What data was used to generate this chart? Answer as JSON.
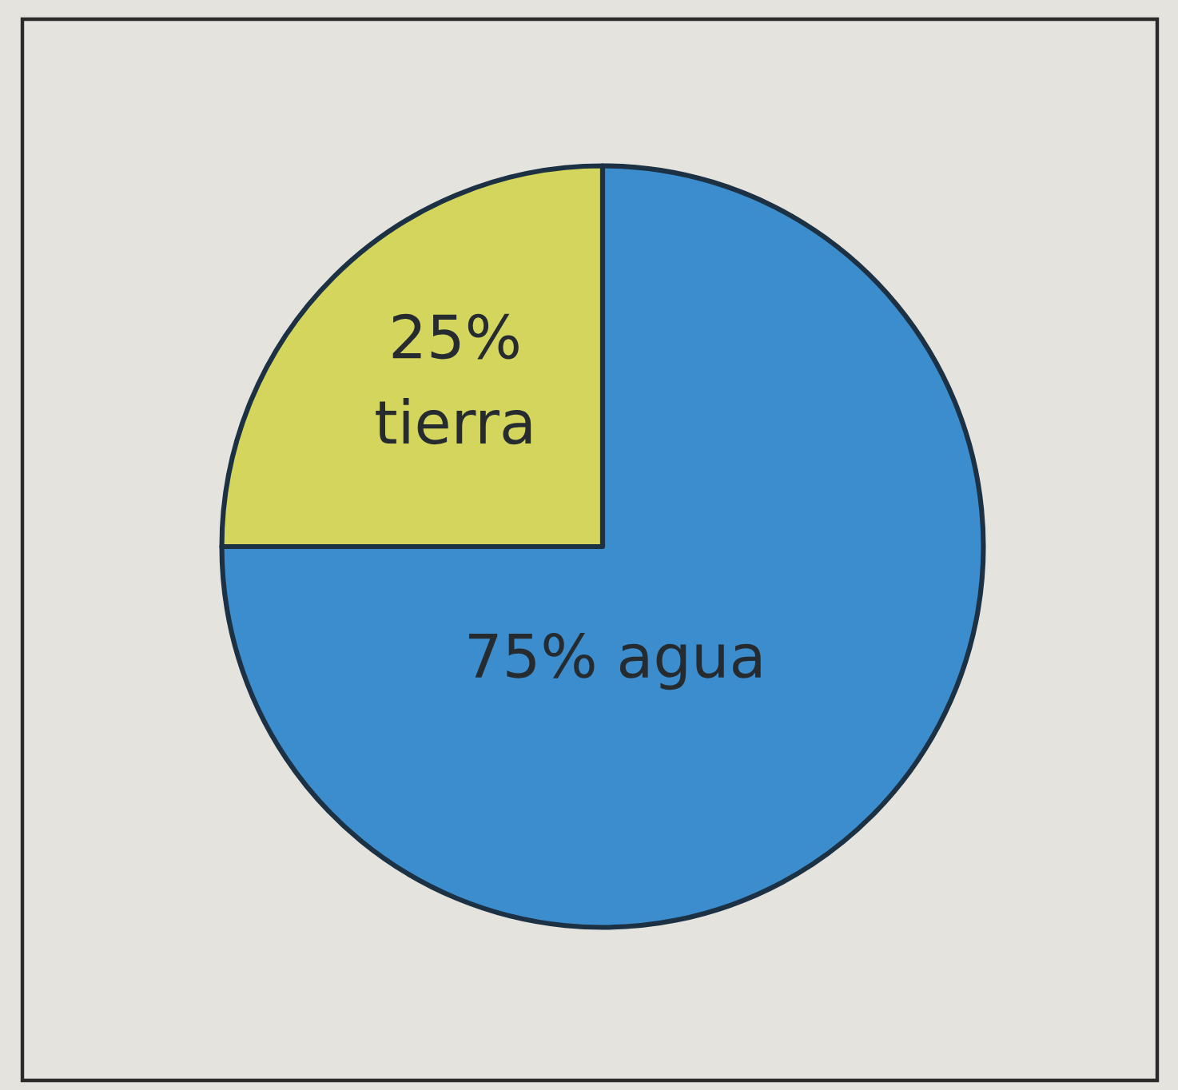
{
  "chart_data": {
    "type": "pie",
    "categories": [
      "tierra",
      "agua"
    ],
    "values": [
      25,
      75
    ],
    "colors": [
      "#d3d55c",
      "#3b8dcd"
    ],
    "value_labels": [
      "25%",
      "75%"
    ]
  }
}
